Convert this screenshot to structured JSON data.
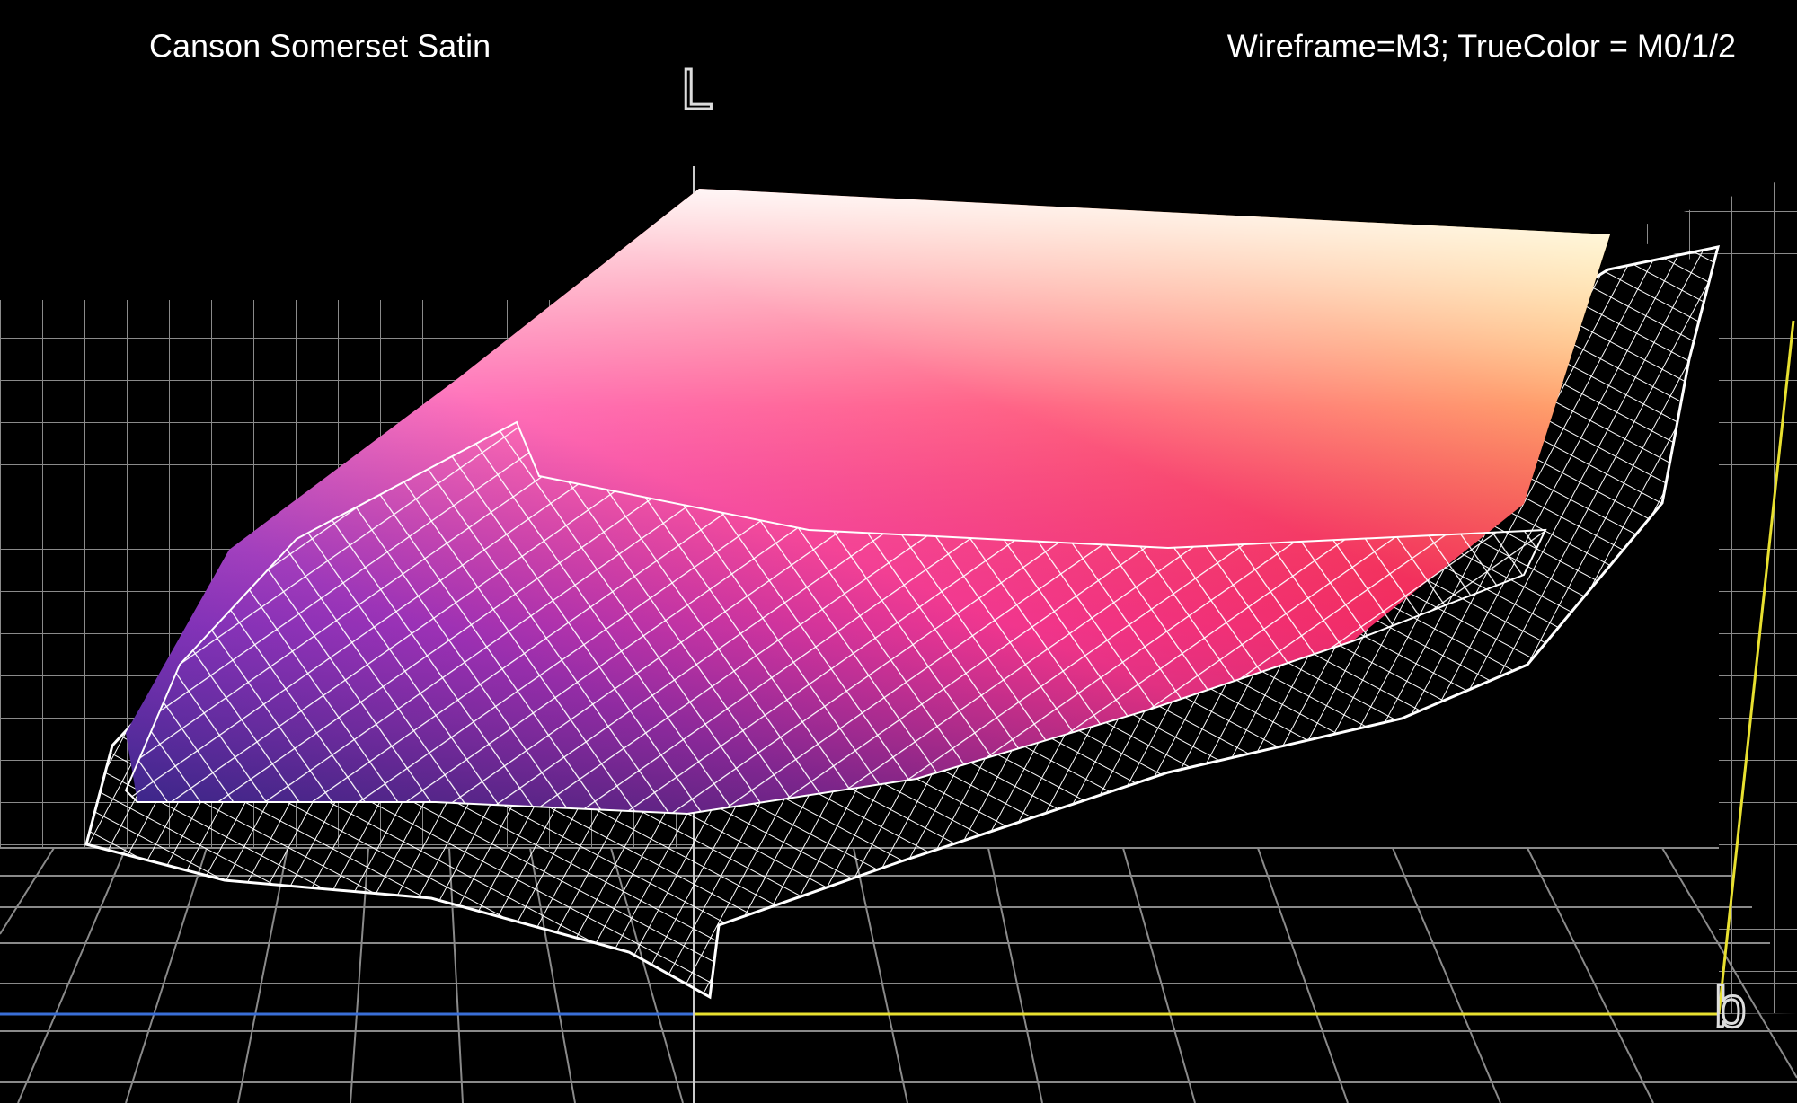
{
  "title": "Canson Somerset Satin",
  "note": "Wireframe=M3; TrueColor = M0/1/2",
  "axes": {
    "vertical": "L",
    "horizontal": "b"
  }
}
